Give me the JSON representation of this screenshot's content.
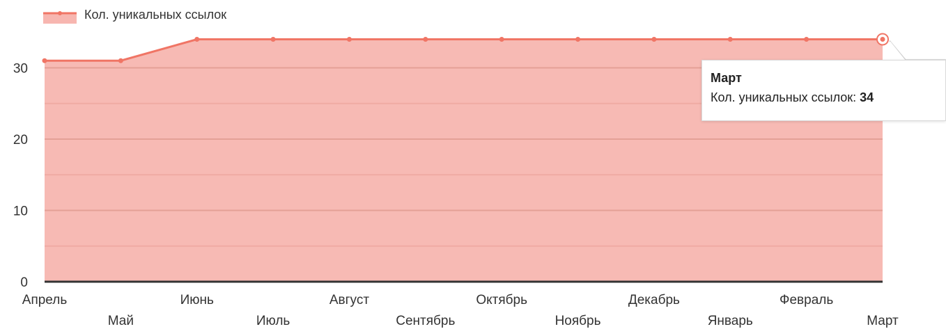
{
  "chart_data": {
    "type": "area",
    "categories": [
      "Апрель",
      "Май",
      "Июнь",
      "Июль",
      "Август",
      "Сентябрь",
      "Октябрь",
      "Ноябрь",
      "Декабрь",
      "Январь",
      "Февраль",
      "Март"
    ],
    "series": [
      {
        "name": "Кол. уникальных ссылок",
        "values": [
          31,
          31,
          34,
          34,
          34,
          34,
          34,
          34,
          34,
          34,
          34,
          34
        ],
        "color": "#f07565",
        "fill_color": "#f7b6b0"
      }
    ],
    "y_ticks": [
      "0",
      "10",
      "20",
      "30"
    ],
    "ylim": [
      0,
      34
    ],
    "grid": true,
    "legend_position": "top-left",
    "title": "",
    "xlabel": "",
    "ylabel": ""
  },
  "tooltip": {
    "title": "Март",
    "label": "Кол. уникальных ссылок: ",
    "value": "34"
  }
}
